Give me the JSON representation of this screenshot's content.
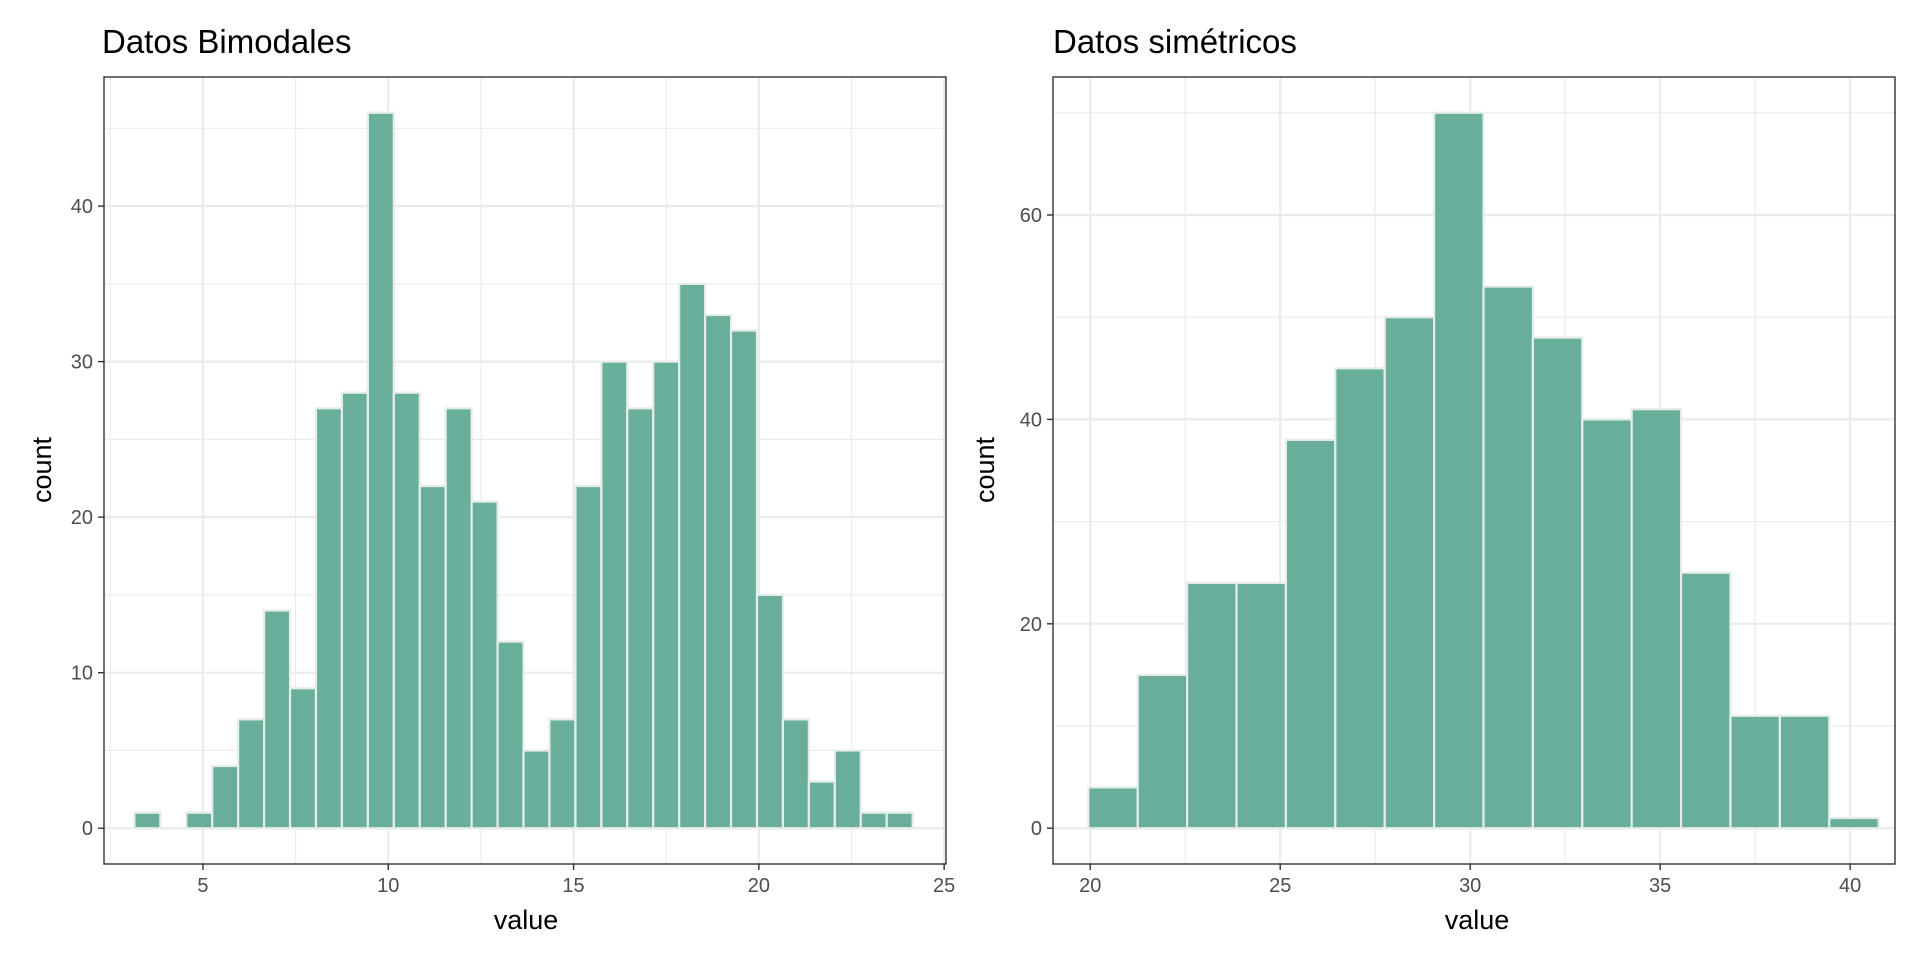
{
  "colors": {
    "bar_fill": "#69ae9a",
    "bar_outline": "#e6ecea",
    "grid": "#ebebeb",
    "panel_border": "#333333",
    "tick_text": "#4d4d4d"
  },
  "chart_data": [
    {
      "type": "bar",
      "title": "Datos Bimodales",
      "xlabel": "value",
      "ylabel": "count",
      "xlim": [
        2.33,
        25.05
      ],
      "ylim": [
        -2.3,
        48.3
      ],
      "xticks": [
        5,
        10,
        15,
        20,
        25
      ],
      "yticks": [
        0,
        10,
        20,
        30,
        40
      ],
      "grid": true,
      "bin_width": 0.7,
      "bins": [
        {
          "x": 3.5,
          "count": 1
        },
        {
          "x": 4.2,
          "count": 0
        },
        {
          "x": 4.9,
          "count": 1
        },
        {
          "x": 5.6,
          "count": 4
        },
        {
          "x": 6.3,
          "count": 7
        },
        {
          "x": 7.0,
          "count": 14
        },
        {
          "x": 7.7,
          "count": 9
        },
        {
          "x": 8.4,
          "count": 27
        },
        {
          "x": 9.1,
          "count": 28
        },
        {
          "x": 9.8,
          "count": 46
        },
        {
          "x": 10.5,
          "count": 28
        },
        {
          "x": 11.2,
          "count": 22
        },
        {
          "x": 11.9,
          "count": 27
        },
        {
          "x": 12.6,
          "count": 21
        },
        {
          "x": 13.3,
          "count": 12
        },
        {
          "x": 14.0,
          "count": 5
        },
        {
          "x": 14.7,
          "count": 7
        },
        {
          "x": 15.4,
          "count": 22
        },
        {
          "x": 16.1,
          "count": 30
        },
        {
          "x": 16.8,
          "count": 27
        },
        {
          "x": 17.5,
          "count": 30
        },
        {
          "x": 18.2,
          "count": 35
        },
        {
          "x": 18.9,
          "count": 33
        },
        {
          "x": 19.6,
          "count": 32
        },
        {
          "x": 20.3,
          "count": 15
        },
        {
          "x": 21.0,
          "count": 7
        },
        {
          "x": 21.7,
          "count": 3
        },
        {
          "x": 22.4,
          "count": 5
        },
        {
          "x": 23.1,
          "count": 1
        },
        {
          "x": 23.8,
          "count": 1
        }
      ]
    },
    {
      "type": "bar",
      "title": "Datos simétricos",
      "xlabel": "value",
      "ylabel": "count",
      "xlim": [
        19.02,
        41.18
      ],
      "ylim": [
        -3.5,
        73.5
      ],
      "xticks": [
        20,
        25,
        30,
        35,
        40
      ],
      "yticks": [
        0,
        20,
        40,
        60
      ],
      "grid": true,
      "bin_width": 1.3,
      "bins": [
        {
          "x": 20.6,
          "count": 4
        },
        {
          "x": 21.9,
          "count": 15
        },
        {
          "x": 23.2,
          "count": 24
        },
        {
          "x": 24.5,
          "count": 24
        },
        {
          "x": 25.8,
          "count": 38
        },
        {
          "x": 27.1,
          "count": 45
        },
        {
          "x": 28.4,
          "count": 50
        },
        {
          "x": 29.7,
          "count": 70
        },
        {
          "x": 31.0,
          "count": 53
        },
        {
          "x": 32.3,
          "count": 48
        },
        {
          "x": 33.6,
          "count": 40
        },
        {
          "x": 34.9,
          "count": 41
        },
        {
          "x": 36.2,
          "count": 25
        },
        {
          "x": 37.5,
          "count": 11
        },
        {
          "x": 38.8,
          "count": 11
        },
        {
          "x": 40.1,
          "count": 1
        }
      ]
    }
  ]
}
